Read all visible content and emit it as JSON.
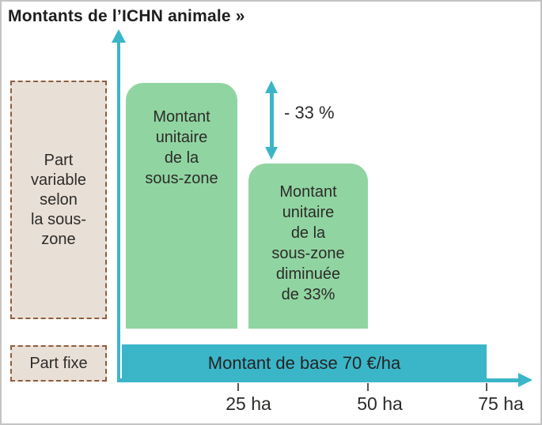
{
  "title": "Montants de l’ICHN animale »",
  "colors": {
    "teal": "#3bb6c9",
    "green": "#90d5a1",
    "beige_fill": "#e8e0d6",
    "beige_border": "#8d5e3e",
    "text_dark": "#2d2b2a",
    "frame_border": "#c4c4c5"
  },
  "legend_boxes": {
    "variable": "Part\nvariable\nselon\nla sous-\nzone",
    "fixe": "Part fixe"
  },
  "bars": {
    "bar1_label": "Montant\nunitaire\nde la\nsous-zone",
    "bar2_label": "Montant\nunitaire\nde la\nsous-zone\ndiminuée\nde 33%",
    "base_label": "Montant de base 70 €/ha"
  },
  "annotation": {
    "delta": "- 33 %"
  },
  "axis": {
    "ticks": [
      "25 ha",
      "50 ha",
      "75 ha"
    ]
  },
  "chart_data": {
    "type": "bar",
    "title": "Montants de l’ICHN animale »",
    "x_unit": "ha",
    "x_ticks": [
      25,
      50,
      75
    ],
    "x_tick_labels": [
      "25 ha",
      "50 ha",
      "75 ha"
    ],
    "row_labels": [
      "Part variable selon la sous-zone",
      "Part fixe"
    ],
    "bars": [
      {
        "label": "Montant unitaire de la sous-zone",
        "x_start": 0,
        "x_end": 25,
        "relative_height": 1.0,
        "color": "#90d5a1",
        "row": "Part variable selon la sous-zone"
      },
      {
        "label": "Montant unitaire de la sous-zone diminuée de 33%",
        "x_start": 25,
        "x_end": 50,
        "relative_height": 0.67,
        "color": "#90d5a1",
        "row": "Part variable selon la sous-zone"
      },
      {
        "label": "Montant de base 70 €/ha",
        "x_start": 0,
        "x_end": 75,
        "value": "70 €/ha",
        "color": "#3bb6c9",
        "row": "Part fixe"
      }
    ],
    "annotations": [
      {
        "text": "- 33 %",
        "between": [
          "Montant unitaire de la sous-zone",
          "Montant unitaire de la sous-zone diminuée de 33%"
        ]
      }
    ],
    "legend_position": "left",
    "grid": false
  }
}
